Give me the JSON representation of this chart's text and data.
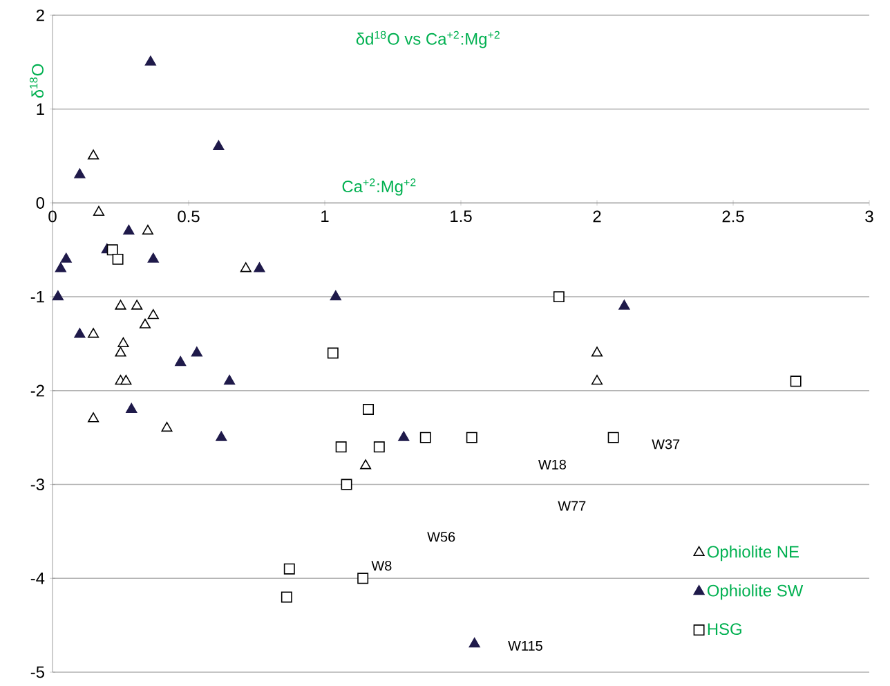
{
  "chart_data": {
    "type": "scatter",
    "title": "δd$^{18}$O vs Ca$^{+2}$:Mg$^{+2}$",
    "xlabel": "Ca$^{+2}$:Mg$^{+2}$",
    "ylabel": "δ$^{18}$O",
    "xlim": [
      0,
      3
    ],
    "xticks": [
      0,
      0.5,
      1,
      1.5,
      2,
      2.5,
      3
    ],
    "ylim": [
      -5,
      2
    ],
    "yticks": [
      -5,
      -4,
      -3,
      -2,
      -1,
      0,
      1,
      2
    ],
    "grid": "y",
    "legend": "bottom right",
    "series": [
      {
        "name": "Ophiolite NE",
        "color": "#000000",
        "marker": "triangle",
        "x": [
          0.15,
          0.17,
          0.35,
          0.25,
          0.31,
          0.37,
          0.34,
          0.15,
          0.26,
          0.25,
          0.25,
          0.27,
          0.15,
          0.42,
          0.71,
          1.15,
          2.0,
          2.0
        ],
        "values": [
          0.5,
          -0.1,
          -0.3,
          -1.1,
          -1.1,
          -1.2,
          -1.3,
          -1.4,
          -1.5,
          -1.6,
          -1.9,
          -1.9,
          -2.3,
          -2.4,
          -0.7,
          -2.8,
          -1.6,
          -1.9
        ]
      },
      {
        "name": "Ophiolite SW",
        "color": "#1f1a4a",
        "marker": "triangle",
        "x": [
          0.36,
          0.61,
          0.1,
          0.28,
          0.2,
          0.37,
          0.05,
          0.03,
          0.02,
          0.76,
          1.04,
          2.1,
          0.1,
          0.47,
          0.53,
          0.65,
          0.29,
          0.62,
          1.29,
          1.55
        ],
        "values": [
          1.5,
          0.6,
          0.3,
          -0.3,
          -0.5,
          -0.6,
          -0.6,
          -0.7,
          -1.0,
          -0.7,
          -1.0,
          -1.1,
          -1.4,
          -1.7,
          -1.6,
          -1.9,
          -2.2,
          -2.5,
          -2.5,
          -4.7
        ]
      },
      {
        "name": "HSG",
        "color": "#000000",
        "marker": "square",
        "x": [
          0.22,
          0.24,
          1.03,
          1.86,
          1.16,
          1.06,
          1.2,
          1.37,
          1.54,
          2.06,
          2.73,
          1.08,
          0.87,
          0.86,
          1.14
        ],
        "values": [
          -0.5,
          -0.6,
          -1.6,
          -1.0,
          -2.2,
          -2.6,
          -2.6,
          -2.5,
          -2.5,
          -2.5,
          -1.9,
          -3.0,
          -3.9,
          -4.2,
          -4.0
        ]
      }
    ],
    "annotations": [
      "W18",
      "W37",
      "W77",
      "W56",
      "W8",
      "W115"
    ]
  }
}
